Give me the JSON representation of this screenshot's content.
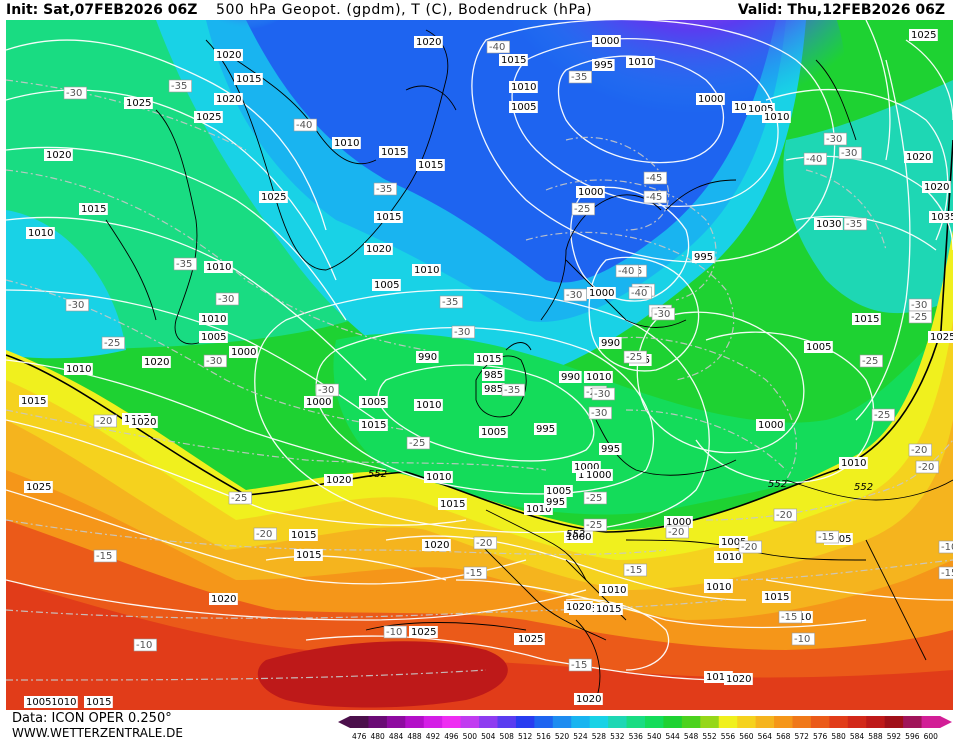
{
  "header": {
    "init_text": "Init: Sat,07FEB2026 06Z",
    "title_text": "500 hPa Geopot. (gpdm), T (C), Bodendruck (hPa)",
    "valid_text": "Valid: Thu,12FEB2026 06Z"
  },
  "footer": {
    "data_source": "Data: ICON OPER 0.250°",
    "website": "WWW.WETTERZENTRALE.DE"
  },
  "colorbar": {
    "labels": [
      "476",
      "480",
      "484",
      "488",
      "492",
      "496",
      "500",
      "504",
      "508",
      "512",
      "516",
      "520",
      "524",
      "528",
      "532",
      "536",
      "540",
      "544",
      "548",
      "552",
      "556",
      "560",
      "564",
      "568",
      "572",
      "576",
      "580",
      "584",
      "588",
      "592",
      "596",
      "600"
    ],
    "colors": [
      "#4b0f4b",
      "#6a0a75",
      "#8e0aa0",
      "#b30fc8",
      "#d41ee6",
      "#ee2df2",
      "#c13cf0",
      "#8e3cf0",
      "#5a3cf0",
      "#283cf0",
      "#1e64f0",
      "#1e8cf0",
      "#19b4f0",
      "#19d2e6",
      "#1ed7b4",
      "#19dc82",
      "#14dc5a",
      "#1ed232",
      "#4bd21e",
      "#96d719",
      "#f0f01e",
      "#f5d21e",
      "#f5b41e",
      "#f59619",
      "#f07819",
      "#eb5a19",
      "#e13c19",
      "#d22819",
      "#be1919",
      "#a00f19",
      "#a0145a",
      "#d21e96"
    ]
  },
  "map": {
    "isobar_labels": [
      "1015",
      "1010",
      "1015",
      "1020",
      "1025",
      "1025",
      "1020",
      "1015",
      "1010",
      "1010",
      "1015",
      "1020",
      "1015",
      "1010",
      "1015",
      "1010",
      "1005",
      "1000",
      "1005",
      "1010",
      "1015",
      "1020",
      "1025",
      "1020",
      "1015",
      "1010",
      "1005",
      "1000",
      "995",
      "990",
      "985",
      "1015",
      "1010",
      "1005",
      "1000",
      "995",
      "990",
      "985",
      "1000",
      "995",
      "1000",
      "1005",
      "1010",
      "1015",
      "1020",
      "1025",
      "1020",
      "1015",
      "1010",
      "1005",
      "1000",
      "995",
      "1000",
      "1005",
      "1010",
      "1015",
      "1020",
      "1025",
      "1030",
      "1035",
      "1020",
      "1025",
      "1015",
      "1010",
      "1005",
      "1010",
      "1015",
      "1020",
      "1010",
      "1015",
      "1020",
      "1025",
      "1020",
      "1015",
      "1010",
      "1005",
      "1000",
      "995",
      "990",
      "1000",
      "995",
      "1000",
      "1005",
      "1010",
      "1015",
      "1020",
      "1025",
      "1020",
      "1015",
      "1010",
      "1005",
      "1000",
      "1005",
      "1010",
      "1015",
      "1020",
      "1015",
      "1010",
      "1005",
      "1000",
      "1010",
      "1015",
      "1020"
    ],
    "temp_labels": [
      "-30",
      "-35",
      "-40",
      "-40",
      "-35",
      "-30",
      "-35",
      "-30",
      "-30",
      "-25",
      "-30",
      "-30",
      "-35",
      "-30",
      "-25",
      "-20",
      "-25",
      "-20",
      "-15",
      "-20",
      "-25",
      "-30",
      "-35",
      "-40",
      "-45",
      "-40",
      "-35",
      "-30",
      "-25",
      "-20",
      "-15",
      "-10",
      "-10",
      "-15",
      "-20",
      "-25",
      "-30",
      "-35",
      "-30",
      "-25",
      "-20",
      "-15",
      "-10",
      "-15",
      "-20",
      "-25",
      "-30",
      "-35",
      "-40",
      "-45",
      "-40",
      "-35",
      "-30",
      "-25",
      "-20",
      "-15",
      "-10",
      "-15",
      "-20",
      "-25"
    ],
    "geopot_labels": [
      "552",
      "552",
      "552",
      "552"
    ]
  }
}
